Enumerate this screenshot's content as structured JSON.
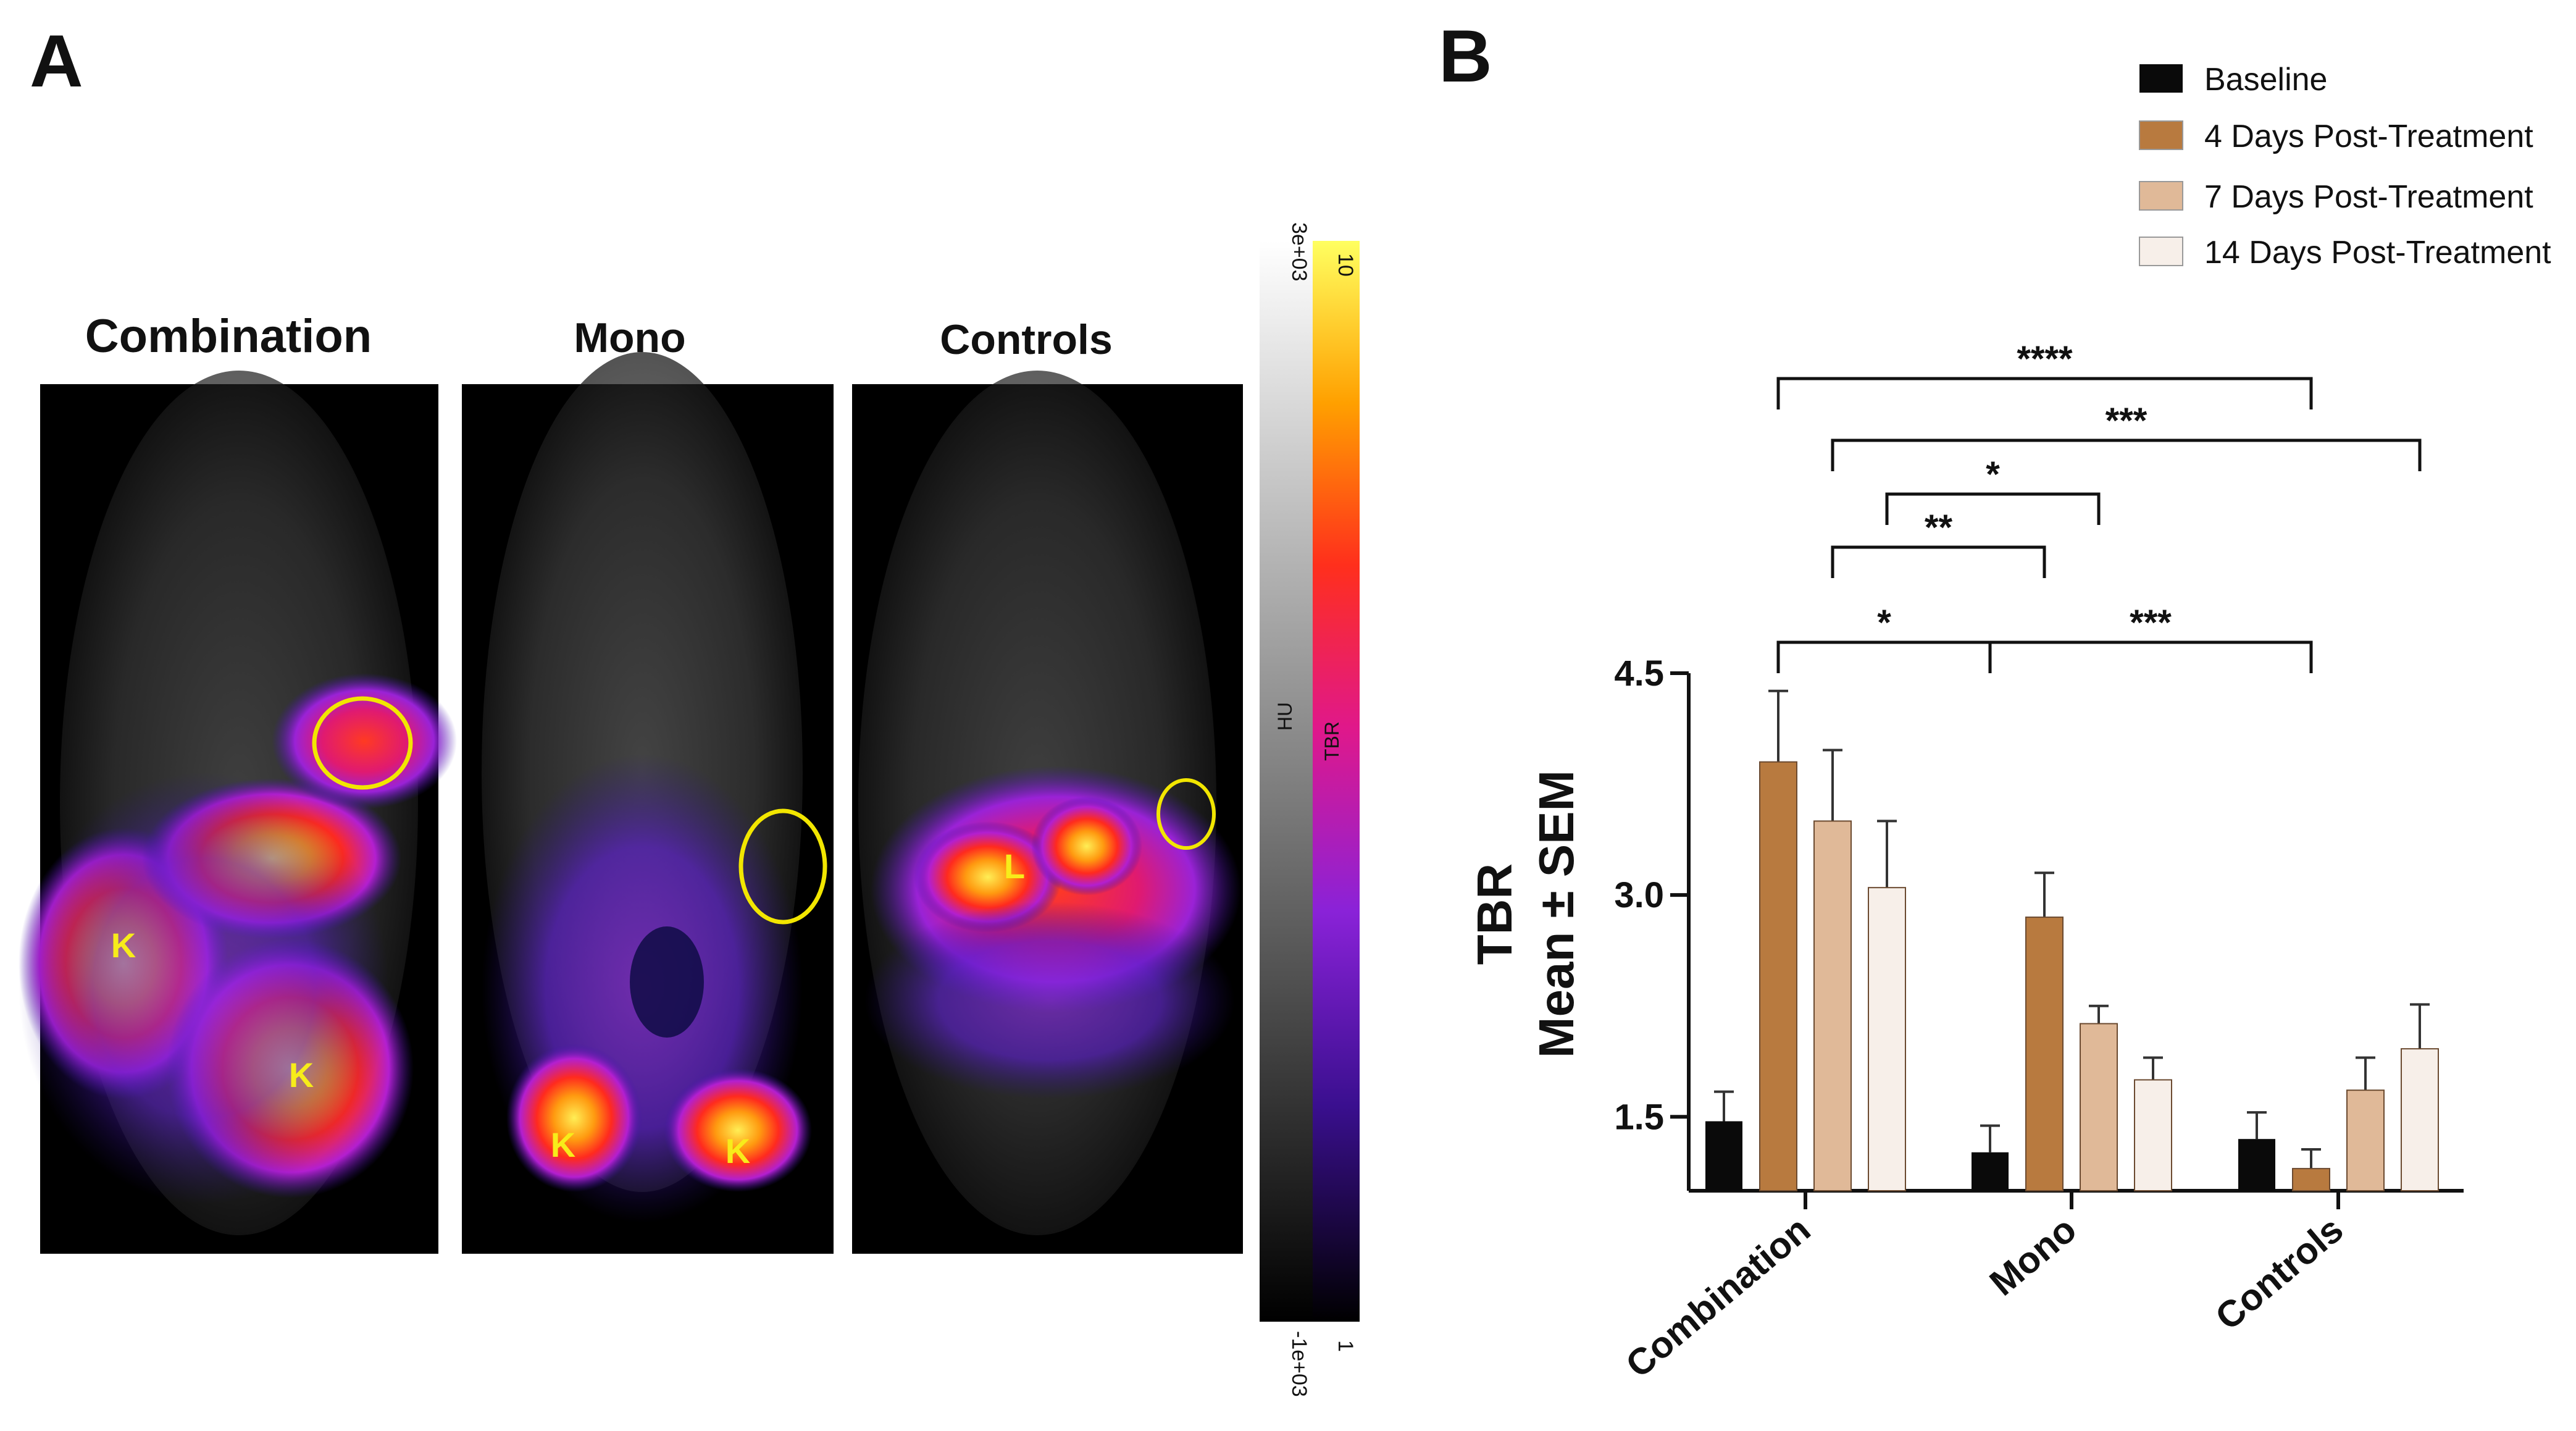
{
  "panel_a": {
    "letter": "A",
    "images": [
      {
        "title": "Combination",
        "labels": [
          "K",
          "K"
        ]
      },
      {
        "title": "Mono",
        "labels": [
          "K",
          "K"
        ]
      },
      {
        "title": "Controls",
        "labels": [
          "L"
        ]
      }
    ],
    "colorbar": {
      "hu_label": "HU",
      "hu_max": "3e+03",
      "hu_min": "-1e+03",
      "tbr_label": "TBR",
      "tbr_max": "10",
      "tbr_min": "1"
    },
    "colors": {
      "circle": "#f2e600",
      "label": "#f7ec1a"
    }
  },
  "panel_b": {
    "letter": "B"
  },
  "chart_data": {
    "type": "bar",
    "categories": [
      "Combination",
      "Mono",
      "Controls"
    ],
    "ylabel_line1": "TBR",
    "ylabel_line2": "Mean ± SEM",
    "yticks": [
      "1.5",
      "3.0",
      "4.5"
    ],
    "ylim": [
      1.0,
      4.5
    ],
    "legend_position": "top-right",
    "series": [
      {
        "name": "Baseline",
        "color": "#0a0a0a",
        "values": [
          1.47,
          1.26,
          1.35
        ],
        "errors": [
          0.2,
          0.18,
          0.18
        ]
      },
      {
        "name": "4 Days Post-Treatment",
        "color": "#b87a3f",
        "values": [
          3.9,
          2.85,
          1.15
        ],
        "errors": [
          0.48,
          0.3,
          0.13
        ]
      },
      {
        "name": "7 Days Post-Treatment",
        "color": "#e0b998",
        "values": [
          3.5,
          2.13,
          1.68
        ],
        "errors": [
          0.48,
          0.12,
          0.22
        ]
      },
      {
        "name": "14 Days Post-Treatment",
        "color": "#f7efe9",
        "values": [
          3.05,
          1.75,
          1.96
        ],
        "errors": [
          0.45,
          0.15,
          0.3
        ]
      }
    ],
    "significance": [
      {
        "label": "*",
        "from": [
          0,
          1
        ],
        "to": [
          1,
          0
        ]
      },
      {
        "label": "***",
        "from": [
          1,
          0
        ],
        "to": [
          2,
          1
        ]
      },
      {
        "label": "**",
        "from": [
          0,
          2
        ],
        "to": [
          1,
          1
        ]
      },
      {
        "label": "*",
        "from": [
          0,
          3
        ],
        "to": [
          1,
          2
        ]
      },
      {
        "label": "***",
        "from": [
          0,
          2
        ],
        "to": [
          2,
          3
        ]
      },
      {
        "label": "****",
        "from": [
          0,
          1
        ],
        "to": [
          2,
          1
        ]
      }
    ]
  }
}
